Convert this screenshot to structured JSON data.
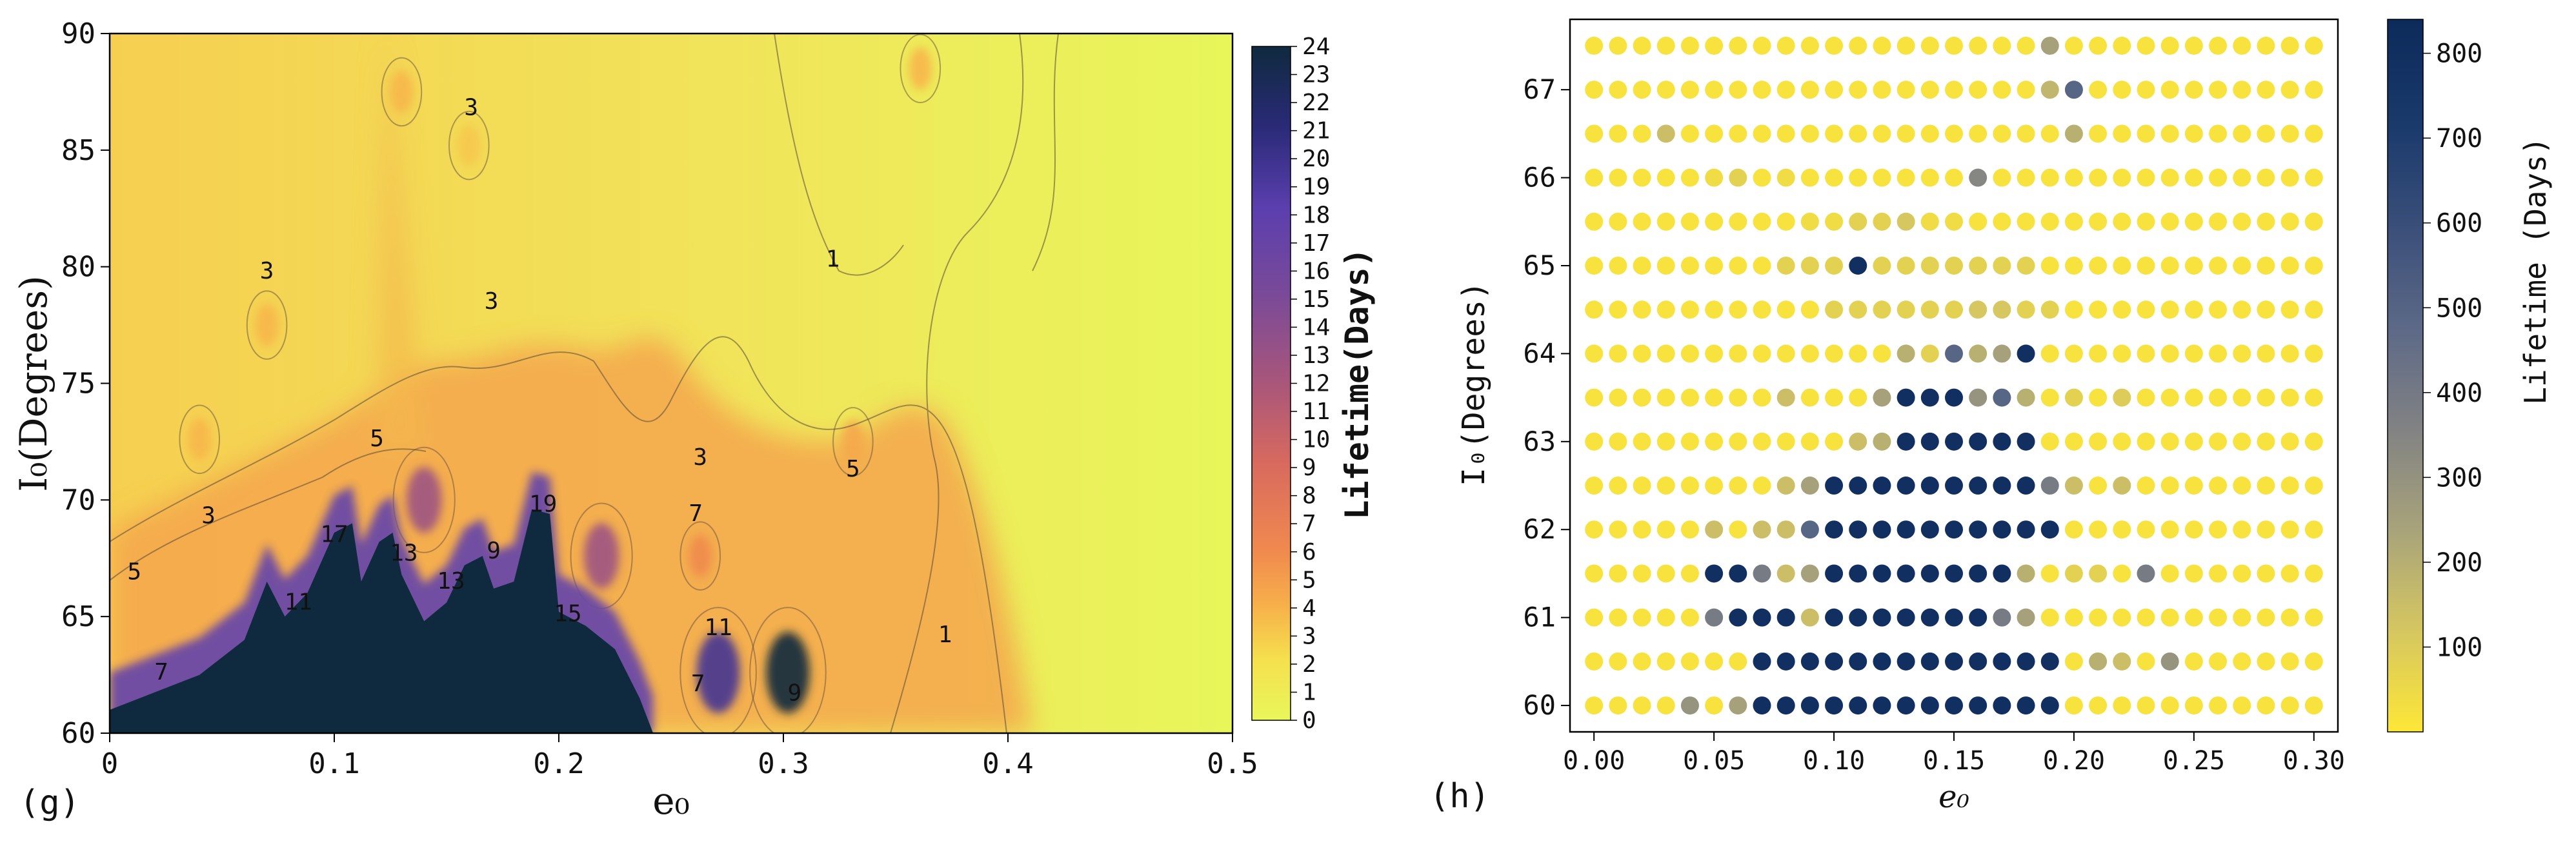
{
  "chart_data": [
    {
      "panel_label": "(g)",
      "type": "heatmap",
      "subtype": "filled-contour",
      "xlabel": "e₀",
      "ylabel": "I₀(Degrees)",
      "xlim": [
        0,
        0.5
      ],
      "ylim": [
        60,
        90
      ],
      "xticks": [
        0,
        0.1,
        0.2,
        0.3,
        0.4,
        0.5
      ],
      "xticklabels": [
        "0",
        "0.1",
        "0.2",
        "0.3",
        "0.4",
        "0.5"
      ],
      "yticks": [
        60,
        65,
        70,
        75,
        80,
        85,
        90
      ],
      "yticklabels": [
        "60",
        "65",
        "70",
        "75",
        "80",
        "85",
        "90"
      ],
      "colorbar": {
        "label": "Lifetime(Days)",
        "min": 0,
        "max": 24,
        "ticks": [
          "0",
          "1",
          "2",
          "3",
          "4",
          "5",
          "6",
          "7",
          "8",
          "9",
          "10",
          "11",
          "12",
          "13",
          "14",
          "15",
          "16",
          "17",
          "18",
          "19",
          "20",
          "21",
          "22",
          "23",
          "24"
        ],
        "colors": [
          "#e8f75a",
          "#f5e04e",
          "#f7b04a",
          "#f08a4e",
          "#d86a5e",
          "#a9567a",
          "#7a4a98",
          "#5b3fae",
          "#2a2a78",
          "#0f2a3e"
        ]
      },
      "contour_labels": [
        {
          "text": "3",
          "x": 0.07,
          "y": 79.5
        },
        {
          "text": "3",
          "x": 0.161,
          "y": 86.5
        },
        {
          "text": "3",
          "x": 0.17,
          "y": 78.2
        },
        {
          "text": "1",
          "x": 0.322,
          "y": 80.0
        },
        {
          "text": "3",
          "x": 0.044,
          "y": 69.0
        },
        {
          "text": "5",
          "x": 0.119,
          "y": 72.3
        },
        {
          "text": "5",
          "x": 0.011,
          "y": 66.6
        },
        {
          "text": "17",
          "x": 0.1,
          "y": 68.2
        },
        {
          "text": "13",
          "x": 0.131,
          "y": 67.4
        },
        {
          "text": "13",
          "x": 0.152,
          "y": 66.2
        },
        {
          "text": "9",
          "x": 0.171,
          "y": 67.5
        },
        {
          "text": "19",
          "x": 0.193,
          "y": 69.5
        },
        {
          "text": "11",
          "x": 0.084,
          "y": 65.3
        },
        {
          "text": "7",
          "x": 0.023,
          "y": 62.3
        },
        {
          "text": "15",
          "x": 0.204,
          "y": 64.8
        },
        {
          "text": "3",
          "x": 0.263,
          "y": 71.5
        },
        {
          "text": "7",
          "x": 0.261,
          "y": 69.1
        },
        {
          "text": "5",
          "x": 0.331,
          "y": 71.0
        },
        {
          "text": "11",
          "x": 0.271,
          "y": 64.2
        },
        {
          "text": "7",
          "x": 0.262,
          "y": 61.8
        },
        {
          "text": "9",
          "x": 0.305,
          "y": 61.4
        },
        {
          "text": "1",
          "x": 0.372,
          "y": 63.9
        }
      ],
      "features": [
        {
          "kind": "core",
          "note": "lifetime >= 23 days region",
          "boundary": [
            [
              0.0,
              61.0
            ],
            [
              0.04,
              62.5
            ],
            [
              0.06,
              64.0
            ],
            [
              0.07,
              66.5
            ],
            [
              0.078,
              65.0
            ],
            [
              0.088,
              66.0
            ],
            [
              0.1,
              68.6
            ],
            [
              0.108,
              69.0
            ],
            [
              0.112,
              66.5
            ],
            [
              0.12,
              68.2
            ],
            [
              0.126,
              68.6
            ],
            [
              0.13,
              66.8
            ],
            [
              0.14,
              64.8
            ],
            [
              0.15,
              65.6
            ],
            [
              0.158,
              67.2
            ],
            [
              0.166,
              67.6
            ],
            [
              0.171,
              66.2
            ],
            [
              0.18,
              66.5
            ],
            [
              0.188,
              69.6
            ],
            [
              0.196,
              69.4
            ],
            [
              0.2,
              65.2
            ],
            [
              0.212,
              64.6
            ],
            [
              0.225,
              63.6
            ],
            [
              0.236,
              61.5
            ],
            [
              0.242,
              60.0
            ]
          ]
        },
        {
          "kind": "hotspot",
          "x": 0.271,
          "y": 62.6,
          "value": 20
        },
        {
          "kind": "hotspot",
          "x": 0.302,
          "y": 62.6,
          "value": 24
        },
        {
          "kind": "hotspot",
          "x": 0.14,
          "y": 70.0,
          "value": 14
        },
        {
          "kind": "hotspot",
          "x": 0.219,
          "y": 67.6,
          "value": 14
        },
        {
          "kind": "hotspot",
          "x": 0.263,
          "y": 67.6,
          "value": 8
        },
        {
          "kind": "hotspot",
          "x": 0.331,
          "y": 72.5,
          "value": 6
        },
        {
          "kind": "hotspot",
          "x": 0.04,
          "y": 72.6,
          "value": 5
        },
        {
          "kind": "hotspot",
          "x": 0.07,
          "y": 77.5,
          "value": 5
        },
        {
          "kind": "hotspot",
          "x": 0.13,
          "y": 87.5,
          "value": 5
        },
        {
          "kind": "hotspot",
          "x": 0.16,
          "y": 85.2,
          "value": 4
        },
        {
          "kind": "hotspot",
          "x": 0.361,
          "y": 88.5,
          "value": 5
        }
      ]
    },
    {
      "panel_label": "(h)",
      "type": "scatter",
      "xlabel": "e₀",
      "ylabel": "I₀(Degrees)",
      "xlim": [
        -0.01,
        0.31
      ],
      "ylim": [
        59.7,
        67.8
      ],
      "xticks": [
        0.0,
        0.05,
        0.1,
        0.15,
        0.2,
        0.25,
        0.3
      ],
      "xticklabels": [
        "0.00",
        "0.05",
        "0.10",
        "0.15",
        "0.20",
        "0.25",
        "0.30"
      ],
      "yticks": [
        60,
        61,
        62,
        63,
        64,
        65,
        66,
        67
      ],
      "yticklabels": [
        "60",
        "61",
        "62",
        "63",
        "64",
        "65",
        "66",
        "67"
      ],
      "grid_x": [
        0.0,
        0.01,
        0.02,
        0.03,
        0.04,
        0.05,
        0.06,
        0.07,
        0.08,
        0.09,
        0.1,
        0.11,
        0.12,
        0.13,
        0.14,
        0.15,
        0.16,
        0.17,
        0.18,
        0.19,
        0.2,
        0.21,
        0.22,
        0.23,
        0.24,
        0.25,
        0.26,
        0.27,
        0.28,
        0.29,
        0.3
      ],
      "grid_y": [
        67.5,
        67.0,
        66.5,
        66.0,
        65.5,
        65.0,
        64.5,
        64.0,
        63.5,
        63.0,
        62.5,
        62.0,
        61.5,
        61.0,
        60.5,
        60.0
      ],
      "colorbar": {
        "label": "Lifetime (Days)",
        "min": 0,
        "max": 840,
        "ticks": [
          "100",
          "200",
          "300",
          "400",
          "500",
          "600",
          "700",
          "800"
        ],
        "colors": [
          "#fde737",
          "#d6c760",
          "#a9a47a",
          "#838383",
          "#5e6a87",
          "#3c507a",
          "#1a3a6c",
          "#0c2a5a"
        ]
      },
      "lifetime_grid_days_rows_top_to_bottom": [
        [
          20,
          20,
          20,
          20,
          20,
          20,
          20,
          20,
          20,
          20,
          20,
          20,
          20,
          20,
          20,
          20,
          20,
          20,
          20,
          250,
          20,
          20,
          20,
          20,
          20,
          20,
          20,
          20,
          20,
          20,
          20
        ],
        [
          20,
          20,
          20,
          20,
          20,
          20,
          20,
          20,
          20,
          20,
          20,
          20,
          20,
          20,
          20,
          20,
          20,
          20,
          20,
          180,
          500,
          20,
          20,
          20,
          20,
          20,
          20,
          20,
          20,
          20,
          20
        ],
        [
          20,
          20,
          20,
          150,
          20,
          20,
          20,
          20,
          20,
          20,
          20,
          20,
          20,
          20,
          20,
          20,
          20,
          20,
          20,
          20,
          200,
          20,
          20,
          20,
          20,
          20,
          20,
          20,
          20,
          20,
          20
        ],
        [
          20,
          20,
          20,
          20,
          20,
          40,
          80,
          20,
          40,
          20,
          20,
          20,
          20,
          20,
          20,
          20,
          350,
          20,
          20,
          20,
          20,
          20,
          20,
          20,
          20,
          20,
          20,
          20,
          20,
          20,
          20
        ],
        [
          20,
          20,
          20,
          20,
          20,
          20,
          20,
          20,
          20,
          40,
          40,
          80,
          80,
          120,
          40,
          40,
          20,
          20,
          20,
          20,
          20,
          20,
          20,
          20,
          20,
          20,
          20,
          20,
          20,
          20,
          20
        ],
        [
          20,
          20,
          20,
          20,
          20,
          20,
          20,
          20,
          80,
          80,
          80,
          800,
          80,
          80,
          80,
          80,
          80,
          80,
          80,
          20,
          20,
          20,
          20,
          20,
          20,
          20,
          20,
          20,
          20,
          20,
          20
        ],
        [
          20,
          20,
          20,
          20,
          20,
          20,
          20,
          20,
          20,
          20,
          80,
          80,
          80,
          80,
          80,
          80,
          120,
          120,
          80,
          80,
          20,
          20,
          20,
          20,
          20,
          20,
          20,
          20,
          20,
          20,
          20
        ],
        [
          20,
          20,
          20,
          20,
          20,
          20,
          20,
          20,
          20,
          20,
          20,
          20,
          20,
          200,
          80,
          500,
          200,
          250,
          800,
          20,
          20,
          20,
          20,
          20,
          20,
          20,
          20,
          20,
          20,
          20,
          20
        ],
        [
          20,
          20,
          20,
          20,
          20,
          20,
          20,
          20,
          150,
          20,
          20,
          20,
          250,
          800,
          800,
          800,
          300,
          500,
          200,
          20,
          80,
          20,
          100,
          20,
          20,
          20,
          20,
          20,
          20,
          20,
          20
        ],
        [
          20,
          20,
          20,
          20,
          20,
          20,
          20,
          20,
          20,
          20,
          20,
          150,
          200,
          800,
          800,
          800,
          800,
          800,
          800,
          20,
          20,
          20,
          20,
          20,
          20,
          20,
          20,
          20,
          20,
          20,
          20
        ],
        [
          20,
          20,
          20,
          20,
          20,
          20,
          20,
          20,
          150,
          250,
          800,
          800,
          800,
          800,
          800,
          800,
          800,
          800,
          800,
          400,
          150,
          20,
          150,
          20,
          20,
          20,
          20,
          20,
          20,
          20,
          20
        ],
        [
          20,
          20,
          20,
          20,
          20,
          150,
          20,
          150,
          150,
          500,
          800,
          800,
          800,
          800,
          800,
          800,
          800,
          800,
          800,
          800,
          20,
          20,
          20,
          20,
          20,
          20,
          20,
          20,
          20,
          20,
          20
        ],
        [
          20,
          20,
          20,
          20,
          20,
          800,
          800,
          400,
          150,
          250,
          800,
          800,
          800,
          800,
          800,
          800,
          800,
          800,
          200,
          20,
          80,
          80,
          20,
          400,
          20,
          20,
          20,
          20,
          20,
          20,
          20
        ],
        [
          20,
          20,
          20,
          20,
          20,
          400,
          800,
          800,
          800,
          150,
          800,
          800,
          800,
          800,
          800,
          800,
          800,
          400,
          250,
          20,
          20,
          20,
          20,
          20,
          20,
          20,
          20,
          20,
          20,
          20,
          20
        ],
        [
          20,
          20,
          20,
          20,
          20,
          20,
          20,
          800,
          800,
          800,
          800,
          800,
          800,
          800,
          800,
          800,
          800,
          800,
          800,
          800,
          20,
          200,
          150,
          20,
          300,
          20,
          20,
          20,
          20,
          20,
          20
        ],
        [
          20,
          20,
          20,
          20,
          300,
          20,
          250,
          800,
          800,
          800,
          800,
          800,
          800,
          800,
          800,
          800,
          800,
          800,
          800,
          800,
          20,
          20,
          20,
          20,
          20,
          20,
          20,
          20,
          20,
          20,
          20
        ]
      ]
    }
  ]
}
